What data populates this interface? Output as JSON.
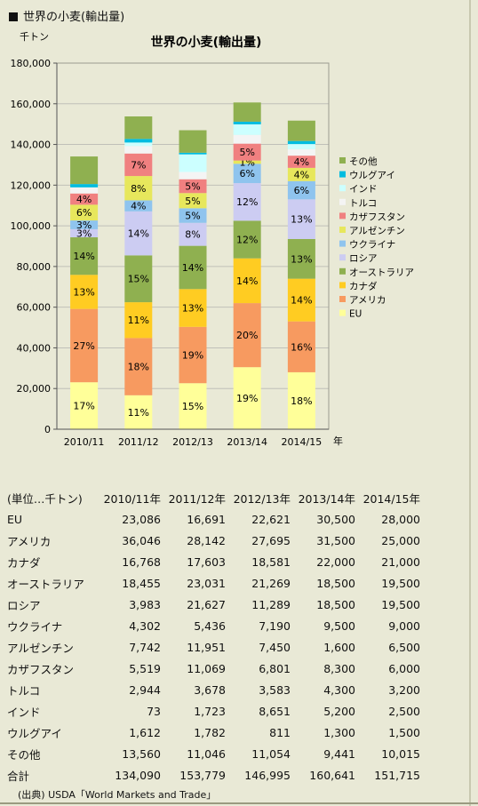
{
  "header": {
    "title": "世界の小麦(輸出量)"
  },
  "chart_data": {
    "type": "bar",
    "stacked": true,
    "title": "世界の小麦(輸出量)",
    "ylabel": "千トン",
    "xlabel": "年",
    "ylim": [
      0,
      180000
    ],
    "yticks": [
      0,
      20000,
      40000,
      60000,
      80000,
      100000,
      120000,
      140000,
      160000,
      180000
    ],
    "ytick_labels": [
      "0",
      "20,000",
      "40,000",
      "60,000",
      "80,000",
      "100,000",
      "120,000",
      "140,000",
      "160,000",
      "180,000"
    ],
    "legend_position": "right",
    "categories": [
      "2010/11",
      "2011/12",
      "2012/13",
      "2013/14",
      "2014/15"
    ],
    "series": [
      {
        "name": "EU",
        "color": "#ffff99",
        "values": [
          23086,
          16691,
          22621,
          30500,
          28000
        ],
        "labels": [
          "17%",
          "11%",
          "15%",
          "19%",
          "18%"
        ]
      },
      {
        "name": "アメリカ",
        "color": "#f79a60",
        "values": [
          36046,
          28142,
          27695,
          31500,
          25000
        ],
        "labels": [
          "27%",
          "18%",
          "19%",
          "20%",
          "16%"
        ]
      },
      {
        "name": "カナダ",
        "color": "#ffcc22",
        "values": [
          16768,
          17603,
          18581,
          22000,
          21000
        ],
        "labels": [
          "13%",
          "11%",
          "13%",
          "14%",
          "14%"
        ]
      },
      {
        "name": "オーストラリア",
        "color": "#8fb050",
        "values": [
          18455,
          23031,
          21269,
          18500,
          19500
        ],
        "labels": [
          "14%",
          "15%",
          "14%",
          "12%",
          "13%"
        ]
      },
      {
        "name": "ロシア",
        "color": "#ccccf2",
        "values": [
          3983,
          21627,
          11289,
          18500,
          19500
        ],
        "labels": [
          "3%",
          "14%",
          "8%",
          "12%",
          "13%"
        ]
      },
      {
        "name": "ウクライナ",
        "color": "#8fc4ee",
        "values": [
          4302,
          5436,
          7190,
          9500,
          9000
        ],
        "labels": [
          "3%",
          "4%",
          "5%",
          "6%",
          "6%"
        ]
      },
      {
        "name": "アルゼンチン",
        "color": "#e7e75c",
        "values": [
          7742,
          11951,
          7450,
          1600,
          6500
        ],
        "labels": [
          "6%",
          "8%",
          "5%",
          "1%",
          "4%"
        ]
      },
      {
        "name": "カザフスタン",
        "color": "#f08080",
        "values": [
          5519,
          11069,
          6801,
          8300,
          6000
        ],
        "labels": [
          "4%",
          "7%",
          "5%",
          "5%",
          "4%"
        ]
      },
      {
        "name": "トルコ",
        "color": "#f4f4f4",
        "values": [
          2944,
          3678,
          3583,
          4300,
          3200
        ],
        "labels": [
          "",
          "",
          "",
          "",
          ""
        ]
      },
      {
        "name": "インド",
        "color": "#ccffff",
        "values": [
          73,
          1723,
          8651,
          5200,
          2500
        ],
        "labels": [
          "",
          "",
          "",
          "",
          ""
        ]
      },
      {
        "name": "ウルグアイ",
        "color": "#00bce0",
        "values": [
          1612,
          1782,
          811,
          1300,
          1500
        ],
        "labels": [
          "",
          "",
          "",
          "",
          ""
        ]
      },
      {
        "name": "その他",
        "color": "#8fb050",
        "values": [
          13560,
          11046,
          11054,
          9441,
          10015
        ],
        "labels": [
          "",
          "",
          "",
          "",
          ""
        ]
      }
    ]
  },
  "table": {
    "header_label": "(単位…千トン)",
    "columns": [
      "2010/11年",
      "2011/12年",
      "2012/13年",
      "2013/14年",
      "2014/15年"
    ],
    "rows": [
      {
        "label": "EU",
        "values": [
          "23,086",
          "16,691",
          "22,621",
          "30,500",
          "28,000"
        ]
      },
      {
        "label": "アメリカ",
        "values": [
          "36,046",
          "28,142",
          "27,695",
          "31,500",
          "25,000"
        ]
      },
      {
        "label": "カナダ",
        "values": [
          "16,768",
          "17,603",
          "18,581",
          "22,000",
          "21,000"
        ]
      },
      {
        "label": "オーストラリア",
        "values": [
          "18,455",
          "23,031",
          "21,269",
          "18,500",
          "19,500"
        ]
      },
      {
        "label": "ロシア",
        "values": [
          "3,983",
          "21,627",
          "11,289",
          "18,500",
          "19,500"
        ]
      },
      {
        "label": "ウクライナ",
        "values": [
          "4,302",
          "5,436",
          "7,190",
          "9,500",
          "9,000"
        ]
      },
      {
        "label": "アルゼンチン",
        "values": [
          "7,742",
          "11,951",
          "7,450",
          "1,600",
          "6,500"
        ]
      },
      {
        "label": "カザフスタン",
        "values": [
          "5,519",
          "11,069",
          "6,801",
          "8,300",
          "6,000"
        ]
      },
      {
        "label": "トルコ",
        "values": [
          "2,944",
          "3,678",
          "3,583",
          "4,300",
          "3,200"
        ]
      },
      {
        "label": "インド",
        "values": [
          "73",
          "1,723",
          "8,651",
          "5,200",
          "2,500"
        ]
      },
      {
        "label": "ウルグアイ",
        "values": [
          "1,612",
          "1,782",
          "811",
          "1,300",
          "1,500"
        ]
      },
      {
        "label": "その他",
        "values": [
          "13,560",
          "11,046",
          "11,054",
          "9,441",
          "10,015"
        ]
      },
      {
        "label": "合計",
        "values": [
          "134,090",
          "153,779",
          "146,995",
          "160,641",
          "151,715"
        ]
      }
    ]
  },
  "source": "(出典) USDA「World Markets and Trade」"
}
